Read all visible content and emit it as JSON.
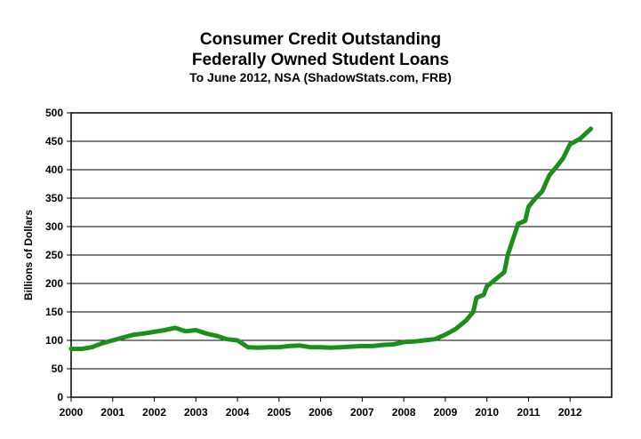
{
  "chart_data": {
    "type": "line",
    "title": "Consumer Credit Outstanding",
    "title_line2": "Federally Owned Student Loans",
    "subtitle": "To June 2012, NSA (ShadowStats.com, FRB)",
    "xlabel": "",
    "ylabel": "Billions of Dollars",
    "xlim": [
      2000,
      2013
    ],
    "ylim": [
      0,
      500
    ],
    "xticks": [
      "2000",
      "2001",
      "2002",
      "2003",
      "2004",
      "2005",
      "2006",
      "2007",
      "2008",
      "2009",
      "2010",
      "2011",
      "2012"
    ],
    "yticks": [
      "0",
      "50",
      "100",
      "150",
      "200",
      "250",
      "300",
      "350",
      "400",
      "450",
      "500"
    ],
    "grid": "horizontal",
    "legend": "none",
    "line_color": "#1a8f1a",
    "series": [
      {
        "x": [
          2000.0,
          2000.25,
          2000.5,
          2000.75,
          2001.0,
          2001.25,
          2001.5,
          2001.75,
          2002.0,
          2002.25,
          2002.5,
          2002.75,
          2003.0,
          2003.25,
          2003.5,
          2003.75,
          2004.0,
          2004.25,
          2004.5,
          2004.75,
          2005.0,
          2005.25,
          2005.5,
          2005.75,
          2006.0,
          2006.25,
          2006.5,
          2006.75,
          2007.0,
          2007.25,
          2007.5,
          2007.75,
          2008.0,
          2008.25,
          2008.5,
          2008.75,
          2009.0,
          2009.25,
          2009.5,
          2009.67,
          2009.75,
          2009.92,
          2010.0,
          2010.17,
          2010.25,
          2010.42,
          2010.5,
          2010.75,
          2010.92,
          2011.0,
          2011.17,
          2011.33,
          2011.5,
          2011.67,
          2011.83,
          2012.0,
          2012.08,
          2012.25,
          2012.5
        ],
        "values": [
          85,
          85,
          88,
          95,
          100,
          105,
          110,
          112,
          115,
          118,
          122,
          116,
          118,
          112,
          108,
          102,
          100,
          88,
          87,
          88,
          88,
          90,
          91,
          88,
          88,
          87,
          88,
          89,
          90,
          90,
          92,
          93,
          97,
          98,
          100,
          102,
          110,
          120,
          135,
          150,
          175,
          180,
          195,
          205,
          210,
          220,
          250,
          305,
          310,
          335,
          350,
          362,
          390,
          405,
          420,
          445,
          448,
          455,
          472
        ]
      }
    ]
  }
}
